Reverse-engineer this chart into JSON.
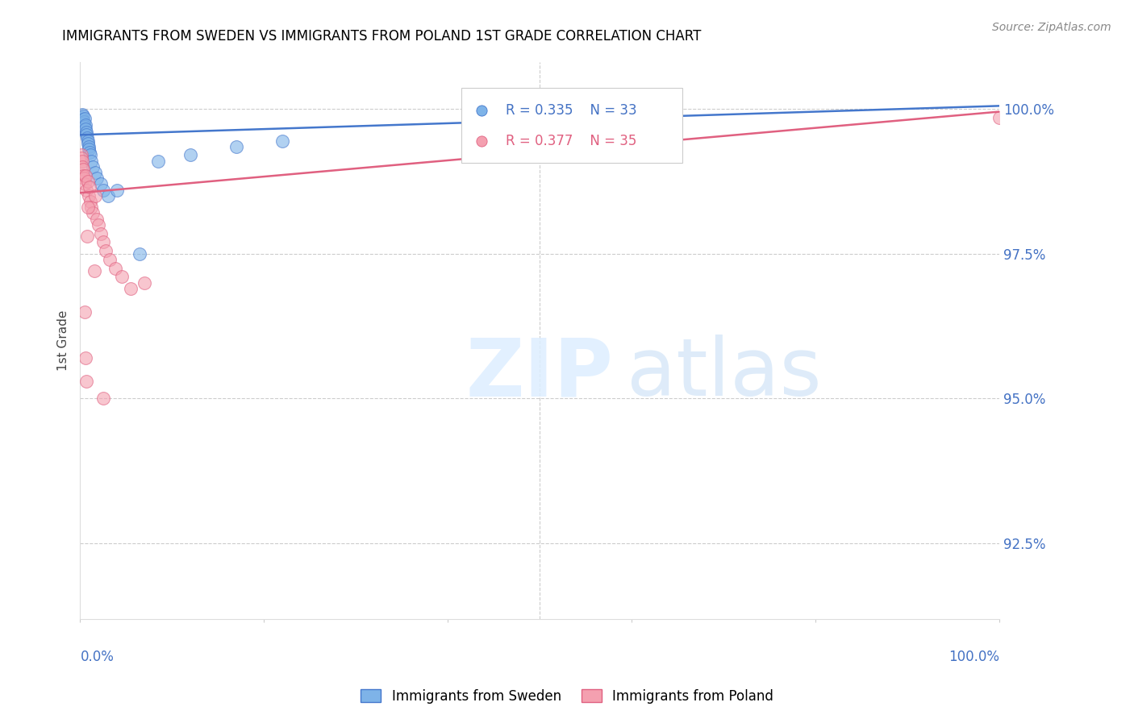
{
  "title": "IMMIGRANTS FROM SWEDEN VS IMMIGRANTS FROM POLAND 1ST GRADE CORRELATION CHART",
  "source": "Source: ZipAtlas.com",
  "ylabel": "1st Grade",
  "blue_color": "#7EB3E8",
  "pink_color": "#F4A0B0",
  "blue_line_color": "#4477CC",
  "pink_line_color": "#E06080",
  "legend_blue_r": "R = 0.335",
  "legend_blue_n": "N = 33",
  "legend_pink_r": "R = 0.377",
  "legend_pink_n": "N = 35",
  "xmin": 0.0,
  "xmax": 100.0,
  "ymin": 91.2,
  "ymax": 100.8,
  "yticks": [
    92.5,
    95.0,
    97.5,
    100.0
  ],
  "xticks": [
    0,
    20,
    40,
    60,
    80,
    100
  ],
  "blue_x": [
    0.1,
    0.15,
    0.2,
    0.25,
    0.3,
    0.35,
    0.4,
    0.45,
    0.5,
    0.55,
    0.6,
    0.65,
    0.7,
    0.75,
    0.8,
    0.85,
    0.9,
    0.95,
    1.0,
    1.1,
    1.2,
    1.4,
    1.6,
    1.8,
    2.2,
    2.5,
    3.0,
    4.0,
    6.5,
    8.5,
    12.0,
    17.0,
    22.0
  ],
  "blue_y": [
    99.8,
    99.85,
    99.9,
    99.82,
    99.88,
    99.75,
    99.78,
    99.83,
    99.7,
    99.72,
    99.65,
    99.6,
    99.55,
    99.5,
    99.45,
    99.4,
    99.35,
    99.3,
    99.25,
    99.2,
    99.1,
    99.0,
    98.9,
    98.8,
    98.7,
    98.6,
    98.5,
    98.6,
    97.5,
    99.1,
    99.2,
    99.35,
    99.45
  ],
  "pink_x": [
    0.1,
    0.15,
    0.2,
    0.25,
    0.3,
    0.35,
    0.4,
    0.5,
    0.6,
    0.7,
    0.8,
    0.9,
    1.0,
    1.1,
    1.2,
    1.4,
    1.6,
    1.8,
    2.0,
    2.2,
    2.5,
    2.8,
    3.2,
    3.8,
    4.5,
    5.5,
    7.0,
    1.5,
    0.45,
    0.55,
    0.65,
    0.75,
    0.85,
    2.5,
    100.0
  ],
  "pink_y": [
    99.2,
    99.15,
    99.1,
    99.0,
    98.95,
    98.85,
    98.8,
    98.7,
    98.85,
    98.6,
    98.75,
    98.5,
    98.65,
    98.4,
    98.3,
    98.2,
    98.5,
    98.1,
    98.0,
    97.85,
    97.7,
    97.55,
    97.4,
    97.25,
    97.1,
    96.9,
    97.0,
    97.2,
    96.5,
    95.7,
    95.3,
    97.8,
    98.3,
    95.0,
    99.85
  ],
  "blue_trend_x0": 0.0,
  "blue_trend_x1": 100.0,
  "blue_trend_y0": 99.55,
  "blue_trend_y1": 100.05,
  "pink_trend_x0": 0.0,
  "pink_trend_x1": 100.0,
  "pink_trend_y0": 98.55,
  "pink_trend_y1": 99.95
}
